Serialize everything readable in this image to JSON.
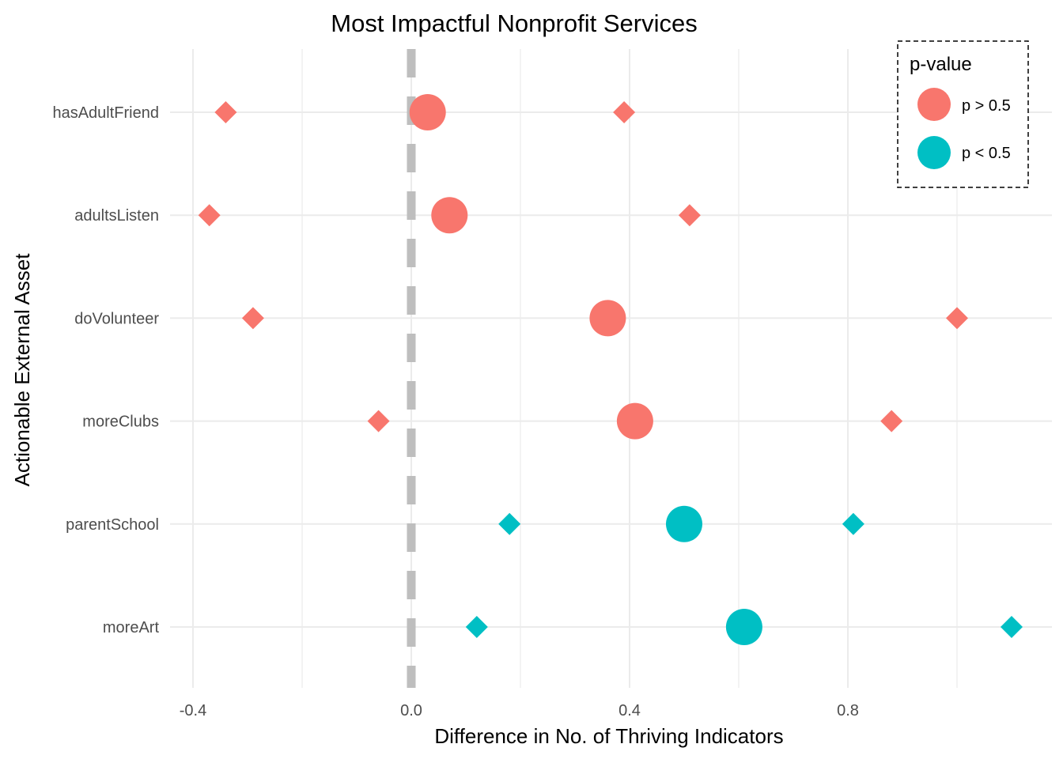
{
  "chart_data": {
    "type": "scatter",
    "title": "Most Impactful Nonprofit Services",
    "xlabel": "Difference in No. of Thriving Indicators",
    "ylabel": "Actionable External Asset",
    "xlim": [
      -0.44,
      1.17
    ],
    "x_ticks": [
      -0.4,
      0.0,
      0.4,
      0.8
    ],
    "x_tick_labels": [
      "-0.4",
      "0.0",
      "0.4",
      "0.8"
    ],
    "reference_line_x": 0.0,
    "grid": true,
    "categories": [
      "hasAdultFriend",
      "adultsListen",
      "doVolunteer",
      "moreClubs",
      "parentSchool",
      "moreArt"
    ],
    "series": [
      {
        "group": "p > 0.5",
        "marker": "diamond",
        "role": "lower",
        "values": [
          -0.34,
          -0.37,
          -0.29,
          -0.06,
          0.18,
          0.12
        ]
      },
      {
        "group": "p > 0.5",
        "marker": "circle",
        "role": "estimate",
        "values": [
          0.03,
          0.07,
          0.36,
          0.41,
          0.5,
          0.61
        ]
      },
      {
        "group": "p > 0.5",
        "marker": "diamond",
        "role": "upper",
        "values": [
          0.39,
          0.51,
          1.0,
          0.88,
          0.81,
          1.1
        ]
      }
    ],
    "point_groups": [
      "p > 0.5",
      "p > 0.5",
      "p > 0.5",
      "p > 0.5",
      "p < 0.5",
      "p < 0.5"
    ],
    "legend": {
      "title": "p-value",
      "placement": "top-right",
      "entries": [
        {
          "label": "p > 0.5",
          "color": "#F8766D"
        },
        {
          "label": "p < 0.5",
          "color": "#00BFC4"
        }
      ]
    },
    "colors": {
      "p_gt": "#F8766D",
      "p_lt": "#00BFC4",
      "reference_line": "#BEBEBE",
      "grid": "#EBEBEB"
    }
  }
}
